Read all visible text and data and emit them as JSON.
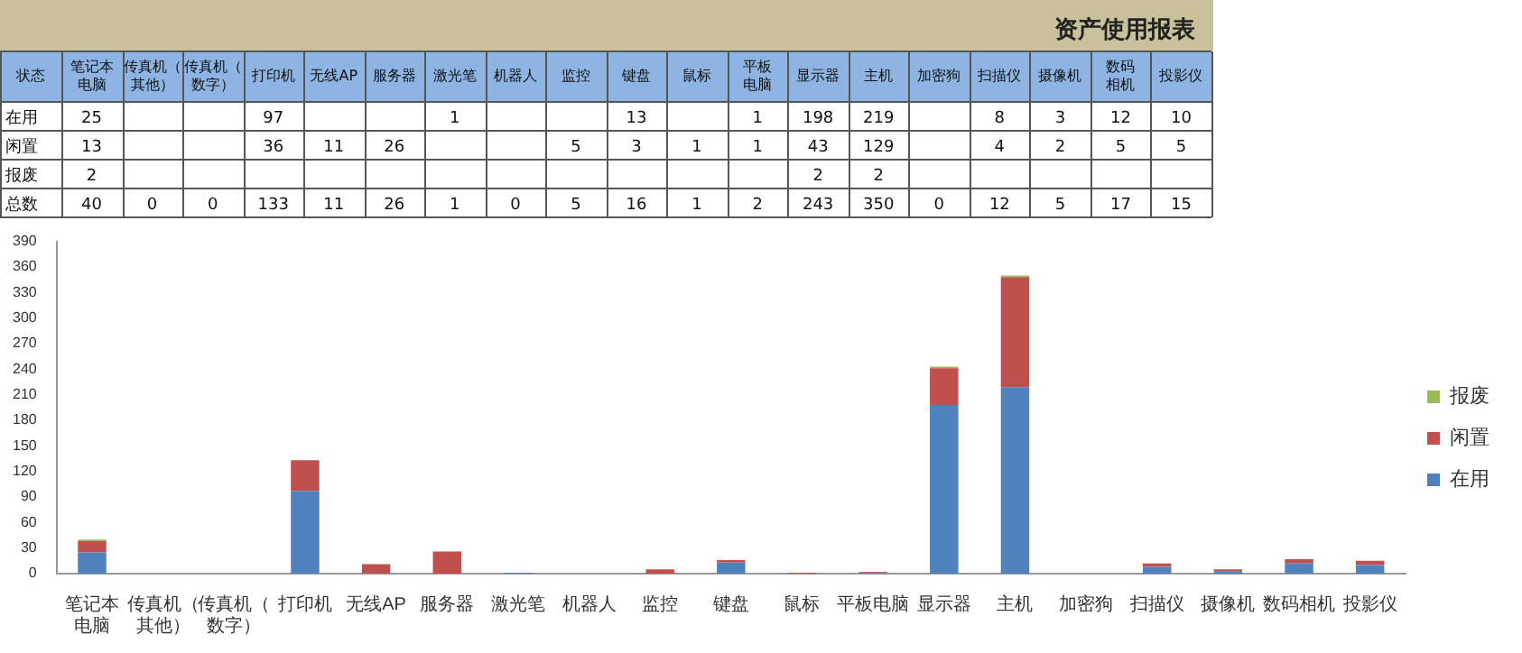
{
  "chart_data": [
    {
      "type": "heatmap",
      "title": "资产使用报表",
      "annotations": [
        "状态"
      ],
      "categories": [
        "笔记本电脑",
        "传真机（其他）",
        "传真机（数字）",
        "打印机",
        "无线AP",
        "服务器",
        "激光笔",
        "机器人",
        "监控",
        "键盘",
        "鼠标",
        "平板电脑",
        "显示器",
        "主机",
        "加密狗",
        "扫描仪",
        "摄像机",
        "数码相机",
        "投影仪"
      ],
      "y_categories": [
        "在用",
        "闲置",
        "报废",
        "总数"
      ],
      "data_labels": true,
      "cells": [
        [
          25,
          null,
          null,
          97,
          null,
          null,
          1,
          null,
          null,
          13,
          null,
          1,
          198,
          219,
          null,
          8,
          3,
          12,
          10
        ],
        [
          13,
          null,
          null,
          36,
          11,
          26,
          null,
          null,
          5,
          3,
          1,
          1,
          43,
          129,
          null,
          4,
          2,
          5,
          5
        ],
        [
          2,
          null,
          null,
          null,
          null,
          null,
          null,
          null,
          null,
          null,
          null,
          null,
          2,
          2,
          null,
          null,
          null,
          null,
          null
        ],
        [
          40,
          0,
          0,
          133,
          11,
          26,
          1,
          0,
          5,
          16,
          1,
          2,
          243,
          350,
          0,
          12,
          5,
          17,
          15
        ]
      ]
    },
    {
      "type": "bar",
      "categories": [
        "笔记本电脑",
        "传真机（其他）",
        "传真机（数字）",
        "打印机",
        "无线AP",
        "服务器",
        "激光笔",
        "机器人",
        "监控",
        "键盘",
        "鼠标",
        "平板电脑",
        "显示器",
        "主机",
        "加密狗",
        "扫描仪",
        "摄像机",
        "数码相机",
        "投影仪"
      ],
      "series": [
        {
          "name": "在用",
          "color": "#4f81bd",
          "values": [
            25,
            null,
            null,
            97,
            null,
            null,
            1,
            null,
            null,
            13,
            null,
            1,
            198,
            219,
            null,
            8,
            3,
            12,
            10
          ]
        },
        {
          "name": "闲置",
          "color": "#c0504d",
          "values": [
            13,
            null,
            null,
            36,
            11,
            26,
            null,
            null,
            5,
            3,
            1,
            1,
            43,
            129,
            null,
            4,
            2,
            5,
            5
          ]
        },
        {
          "name": "报废",
          "color": "#9bbb59",
          "values": [
            2,
            null,
            null,
            null,
            null,
            null,
            null,
            null,
            null,
            null,
            null,
            null,
            2,
            2,
            null,
            null,
            null,
            null,
            null
          ]
        }
      ],
      "stacked": true,
      "grid": false,
      "legend": "right",
      "ylim": [
        0,
        390
      ],
      "yticks": [
        0,
        30,
        60,
        90,
        120,
        150,
        180,
        210,
        240,
        270,
        300,
        330,
        360,
        390
      ]
    }
  ]
}
